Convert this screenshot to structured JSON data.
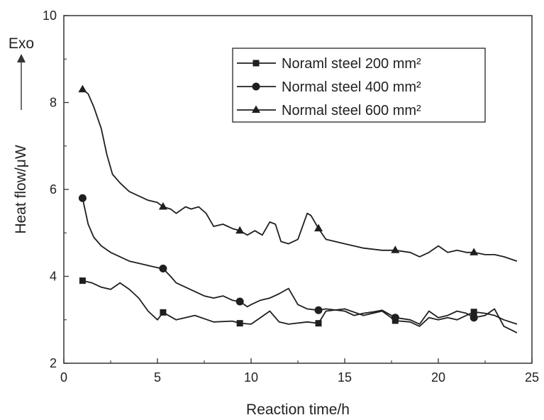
{
  "chart_data": {
    "type": "line",
    "xlabel": "Reaction time/h",
    "ylabel": "Heat flow/μW",
    "annotation": "Exo",
    "xlim": [
      0,
      25
    ],
    "ylim": [
      2,
      10
    ],
    "xticks": [
      0,
      5,
      10,
      15,
      20,
      25
    ],
    "yticks": [
      2,
      4,
      6,
      8,
      10
    ],
    "legend_position": "top-right",
    "grid": false,
    "series": [
      {
        "name": "Noraml steel 200 mm²",
        "marker": "square",
        "color": "#1f1f1f",
        "marker_x": [
          1.0,
          5.3,
          9.4,
          13.6,
          17.7,
          21.9
        ],
        "x": [
          1.0,
          1.5,
          2.0,
          2.5,
          3.0,
          3.5,
          4.0,
          4.5,
          5.0,
          5.3,
          6.0,
          7.0,
          8.0,
          9.0,
          9.4,
          10.0,
          10.5,
          11.0,
          11.5,
          12.0,
          13.0,
          13.6,
          14.0,
          15.0,
          16.0,
          17.0,
          17.7,
          18.5,
          19.0,
          19.5,
          20.0,
          20.5,
          21.0,
          21.5,
          21.9,
          22.5,
          23.0,
          23.5,
          24.2
        ],
        "values": [
          3.9,
          3.85,
          3.75,
          3.7,
          3.85,
          3.7,
          3.5,
          3.2,
          3.0,
          3.17,
          3.0,
          3.1,
          2.95,
          2.97,
          2.92,
          2.9,
          3.05,
          3.2,
          2.95,
          2.9,
          2.95,
          2.92,
          3.2,
          3.25,
          3.1,
          3.2,
          2.98,
          2.95,
          2.85,
          3.05,
          3.0,
          3.05,
          3.0,
          3.1,
          3.18,
          3.15,
          3.1,
          3.0,
          2.9
        ]
      },
      {
        "name": "Normal steel 400 mm²",
        "marker": "circle",
        "color": "#1f1f1f",
        "marker_x": [
          1.0,
          5.3,
          9.4,
          13.6,
          17.7,
          21.9
        ],
        "x": [
          1.0,
          1.3,
          1.6,
          2.0,
          2.5,
          3.0,
          3.5,
          4.0,
          4.5,
          5.0,
          5.3,
          5.7,
          6.0,
          6.5,
          7.0,
          7.5,
          8.0,
          8.5,
          9.0,
          9.4,
          9.8,
          10.0,
          10.5,
          11.0,
          11.5,
          12.0,
          12.5,
          13.0,
          13.6,
          14.0,
          15.0,
          15.5,
          16.0,
          16.5,
          17.0,
          17.7,
          18.5,
          19.0,
          19.5,
          20.0,
          20.5,
          21.0,
          21.5,
          21.9,
          22.5,
          23.0,
          23.5,
          24.2
        ],
        "values": [
          5.8,
          5.2,
          4.9,
          4.7,
          4.55,
          4.45,
          4.35,
          4.3,
          4.25,
          4.2,
          4.18,
          4.0,
          3.85,
          3.75,
          3.65,
          3.55,
          3.5,
          3.55,
          3.45,
          3.42,
          3.3,
          3.35,
          3.45,
          3.5,
          3.6,
          3.72,
          3.35,
          3.25,
          3.22,
          3.25,
          3.2,
          3.1,
          3.15,
          3.18,
          3.22,
          3.05,
          3.0,
          2.9,
          3.2,
          3.05,
          3.1,
          3.2,
          3.15,
          3.05,
          3.1,
          3.25,
          2.85,
          2.7
        ]
      },
      {
        "name": "Normal steel 600 mm²",
        "marker": "triangle",
        "color": "#1f1f1f",
        "marker_x": [
          1.0,
          5.3,
          9.4,
          13.6,
          17.7,
          21.9
        ],
        "x": [
          1.0,
          1.3,
          1.6,
          2.0,
          2.3,
          2.6,
          3.0,
          3.5,
          4.0,
          4.5,
          5.0,
          5.3,
          5.7,
          6.0,
          6.5,
          6.8,
          7.2,
          7.6,
          8.0,
          8.5,
          9.0,
          9.4,
          9.8,
          10.2,
          10.6,
          11.0,
          11.3,
          11.6,
          12.0,
          12.5,
          13.0,
          13.2,
          13.4,
          13.6,
          14.0,
          14.5,
          15.0,
          16.0,
          17.0,
          17.7,
          18.5,
          19.0,
          19.5,
          20.0,
          20.5,
          21.0,
          21.5,
          21.9,
          22.5,
          23.0,
          23.5,
          24.2
        ],
        "values": [
          8.3,
          8.2,
          7.9,
          7.4,
          6.8,
          6.35,
          6.15,
          5.95,
          5.85,
          5.75,
          5.7,
          5.6,
          5.55,
          5.45,
          5.6,
          5.55,
          5.6,
          5.45,
          5.15,
          5.2,
          5.1,
          5.05,
          4.95,
          5.05,
          4.95,
          5.25,
          5.2,
          4.8,
          4.75,
          4.85,
          5.45,
          5.4,
          5.25,
          5.1,
          4.85,
          4.8,
          4.75,
          4.65,
          4.6,
          4.6,
          4.55,
          4.45,
          4.55,
          4.7,
          4.55,
          4.6,
          4.55,
          4.55,
          4.5,
          4.5,
          4.45,
          4.35
        ]
      }
    ]
  }
}
